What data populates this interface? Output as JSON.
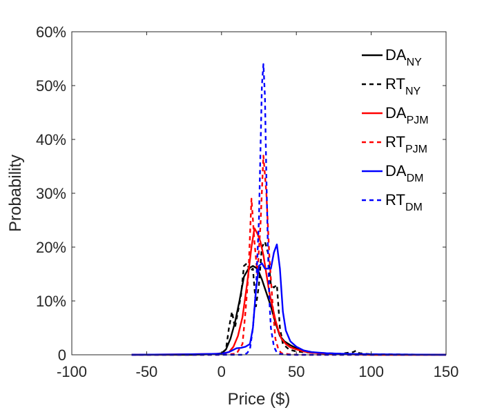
{
  "chart_data": {
    "type": "line",
    "xlabel": "Price ($)",
    "ylabel": "Probability",
    "xlim": [
      -100,
      150
    ],
    "ylim": [
      0,
      0.6
    ],
    "xticks": [
      -100,
      -50,
      0,
      50,
      100,
      150
    ],
    "xtick_labels": [
      "-100",
      "-50",
      "0",
      "50",
      "100",
      "150"
    ],
    "yticks": [
      0,
      0.1,
      0.2,
      0.3,
      0.4,
      0.5,
      0.6
    ],
    "ytick_labels": [
      "0",
      "10%",
      "20%",
      "30%",
      "40%",
      "50%",
      "60%"
    ],
    "grid": false,
    "legend_position": "top-right",
    "series": [
      {
        "name": "DA",
        "sub": "NY",
        "color": "#000000",
        "dash": "solid",
        "x": [
          -60,
          -20,
          -5,
          0,
          3,
          6,
          9,
          12,
          15,
          18,
          21,
          24,
          27,
          30,
          33,
          36,
          39,
          42,
          46,
          50,
          55,
          60,
          65,
          70,
          80,
          90,
          100,
          150
        ],
        "y": [
          0,
          0,
          0.001,
          0.003,
          0.01,
          0.03,
          0.06,
          0.1,
          0.145,
          0.16,
          0.165,
          0.16,
          0.14,
          0.115,
          0.09,
          0.06,
          0.035,
          0.025,
          0.018,
          0.012,
          0.008,
          0.005,
          0.003,
          0.002,
          0.001,
          0.001,
          0,
          0
        ]
      },
      {
        "name": "RT",
        "sub": "NY",
        "color": "#000000",
        "dash": "dashed",
        "x": [
          -60,
          -10,
          0,
          3,
          5,
          7,
          9,
          11,
          13,
          15,
          17,
          19,
          21,
          23,
          25,
          27,
          29,
          31,
          33,
          35,
          37,
          39,
          41,
          45,
          50,
          60,
          70,
          80,
          88,
          90,
          92,
          100,
          150
        ],
        "y": [
          0,
          0,
          0.002,
          0.01,
          0.05,
          0.08,
          0.05,
          0.08,
          0.11,
          0.165,
          0.17,
          0.155,
          0.16,
          0.09,
          0.13,
          0.2,
          0.21,
          0.19,
          0.13,
          0.125,
          0.13,
          0.05,
          0.02,
          0.01,
          0.006,
          0.004,
          0.003,
          0.002,
          0.005,
          0.008,
          0.003,
          0.001,
          0
        ]
      },
      {
        "name": "DA",
        "sub": "PJM",
        "color": "#ff0000",
        "dash": "solid",
        "x": [
          -60,
          -20,
          0,
          5,
          8,
          11,
          14,
          17,
          20,
          22,
          24,
          26,
          28,
          30,
          32,
          34,
          36,
          38,
          40,
          43,
          46,
          50,
          55,
          60,
          70,
          80,
          100,
          150
        ],
        "y": [
          0,
          0.001,
          0.002,
          0.005,
          0.015,
          0.035,
          0.07,
          0.13,
          0.2,
          0.235,
          0.225,
          0.21,
          0.185,
          0.15,
          0.115,
          0.09,
          0.065,
          0.045,
          0.03,
          0.02,
          0.014,
          0.01,
          0.006,
          0.004,
          0.002,
          0.001,
          0,
          0
        ]
      },
      {
        "name": "RT",
        "sub": "PJM",
        "color": "#ff0000",
        "dash": "dashed",
        "x": [
          -60,
          0,
          10,
          14,
          16,
          18,
          20,
          22,
          24,
          26,
          28,
          30,
          32,
          34,
          36,
          38,
          40,
          45,
          50,
          60,
          100,
          150
        ],
        "y": [
          0,
          0,
          0.002,
          0.02,
          0.08,
          0.15,
          0.29,
          0.21,
          0.15,
          0.24,
          0.37,
          0.3,
          0.18,
          0.1,
          0.03,
          0.01,
          0.003,
          0.001,
          0,
          0,
          0,
          0
        ]
      },
      {
        "name": "DA",
        "sub": "DM",
        "color": "#0000ff",
        "dash": "solid",
        "x": [
          -60,
          -20,
          0,
          5,
          10,
          13,
          16,
          19,
          21,
          23,
          25,
          27,
          29,
          31,
          33,
          35,
          37,
          39,
          41,
          43,
          46,
          50,
          55,
          60,
          70,
          80,
          100,
          150
        ],
        "y": [
          0,
          0.001,
          0.002,
          0.005,
          0.012,
          0.013,
          0.015,
          0.02,
          0.05,
          0.12,
          0.165,
          0.17,
          0.16,
          0.16,
          0.16,
          0.19,
          0.205,
          0.16,
          0.08,
          0.045,
          0.025,
          0.015,
          0.008,
          0.005,
          0.003,
          0.002,
          0.001,
          0
        ]
      },
      {
        "name": "RT",
        "sub": "DM",
        "color": "#0000ff",
        "dash": "dashed",
        "x": [
          -60,
          0,
          15,
          17,
          19,
          21,
          23,
          25,
          27,
          28,
          29,
          30,
          31,
          32,
          33,
          35,
          37,
          40,
          45,
          60,
          150
        ],
        "y": [
          0,
          0,
          0,
          0.003,
          0.01,
          0.05,
          0.12,
          0.25,
          0.5,
          0.54,
          0.48,
          0.33,
          0.2,
          0.1,
          0.05,
          0.015,
          0.004,
          0.001,
          0,
          0,
          0
        ]
      }
    ]
  }
}
